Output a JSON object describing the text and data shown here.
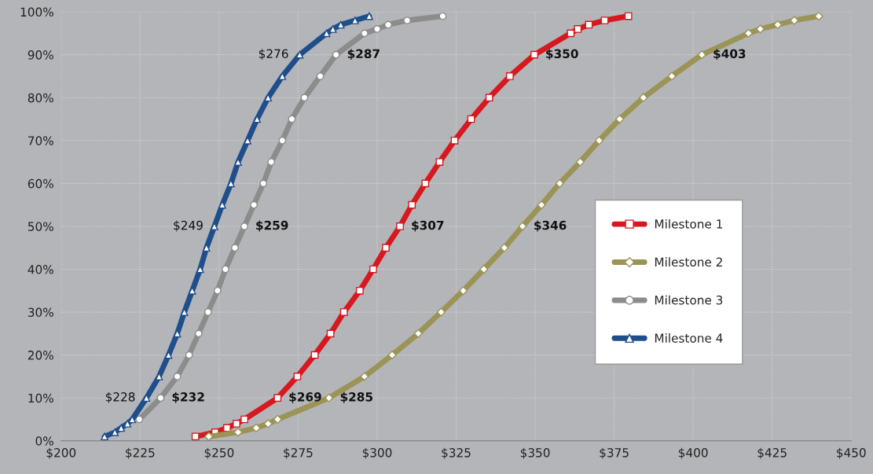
{
  "chart_data": {
    "type": "line",
    "xlim": [
      200,
      450
    ],
    "ylim": [
      0,
      100
    ],
    "xticks": [
      {
        "value": 200,
        "label": "$200"
      },
      {
        "value": 225,
        "label": "$225"
      },
      {
        "value": 250,
        "label": "$250"
      },
      {
        "value": 275,
        "label": "$275"
      },
      {
        "value": 300,
        "label": "$300"
      },
      {
        "value": 325,
        "label": "$325"
      },
      {
        "value": 350,
        "label": "$350"
      },
      {
        "value": 375,
        "label": "$375"
      },
      {
        "value": 400,
        "label": "$400"
      },
      {
        "value": 425,
        "label": "$425"
      },
      {
        "value": 450,
        "label": "$450"
      }
    ],
    "yticks": [
      {
        "value": 0,
        "label": "0%"
      },
      {
        "value": 10,
        "label": "10%"
      },
      {
        "value": 20,
        "label": "20%"
      },
      {
        "value": 30,
        "label": "30%"
      },
      {
        "value": 40,
        "label": "40%"
      },
      {
        "value": 50,
        "label": "50%"
      },
      {
        "value": 60,
        "label": "60%"
      },
      {
        "value": 70,
        "label": "70%"
      },
      {
        "value": 80,
        "label": "80%"
      },
      {
        "value": 90,
        "label": "90%"
      },
      {
        "value": 100,
        "label": "100%"
      }
    ],
    "grid": true,
    "legend": "right",
    "line_style": "solid",
    "series": [
      {
        "name": "Milestone 1",
        "color": "#d7191f",
        "marker": "square",
        "x": [
          242.5,
          248.75,
          252.5,
          255.5,
          258,
          268.5,
          274.75,
          280.25,
          285.25,
          289.5,
          294.5,
          298.75,
          302.75,
          307.25,
          311,
          315.25,
          319.75,
          324.5,
          329.75,
          335.5,
          342,
          349.75,
          361.25,
          363.5,
          367,
          372,
          379.5
        ],
        "values": [
          1,
          2,
          3,
          4,
          5,
          10,
          15,
          20,
          25,
          30,
          35,
          40,
          45,
          50,
          55,
          60,
          65,
          70,
          75,
          80,
          85,
          90,
          95,
          96,
          97,
          98,
          99
        ]
      },
      {
        "name": "Milestone 2",
        "color": "#9b9456",
        "marker": "diamond",
        "x": [
          246.75,
          256,
          261.75,
          265.5,
          268.5,
          284.75,
          296,
          304.75,
          313,
          320.25,
          327.25,
          333.75,
          340.25,
          346,
          352,
          357.75,
          364.25,
          370.25,
          376.75,
          384.25,
          393.25,
          402.75,
          417.5,
          421.25,
          426.75,
          432,
          439.75
        ],
        "values": [
          1,
          2,
          3,
          4,
          5,
          10,
          15,
          20,
          25,
          30,
          35,
          40,
          45,
          50,
          55,
          60,
          65,
          70,
          75,
          80,
          85,
          90,
          95,
          96,
          97,
          98,
          99
        ]
      },
      {
        "name": "Milestone 3",
        "color": "#8c8c8c",
        "marker": "circle",
        "x": [
          224.75,
          231.5,
          236.75,
          240.5,
          243.5,
          246.5,
          249.5,
          252,
          255,
          258,
          261,
          264,
          266.5,
          270,
          273,
          277,
          282,
          287,
          296,
          300,
          303.5,
          309.5,
          320.75
        ],
        "values": [
          5,
          10,
          15,
          20,
          25,
          30,
          35,
          40,
          45,
          50,
          55,
          60,
          65,
          70,
          75,
          80,
          85,
          90,
          95,
          96,
          97,
          98,
          99
        ]
      },
      {
        "name": "Milestone 4",
        "color": "#1f4e8c",
        "marker": "triangle",
        "x": [
          213.75,
          217,
          219,
          221,
          222.5,
          227,
          231,
          234,
          236.75,
          239,
          241.5,
          244,
          246,
          248.5,
          251,
          253.75,
          256,
          259,
          262,
          265.5,
          270,
          275.5,
          284,
          286,
          288.5,
          293,
          297.5
        ],
        "values": [
          1,
          2,
          3,
          4,
          5,
          10,
          15,
          20,
          25,
          30,
          35,
          40,
          45,
          50,
          55,
          60,
          65,
          70,
          75,
          80,
          85,
          90,
          95,
          96,
          97,
          98,
          99
        ]
      }
    ],
    "annotations": [
      {
        "text": "$228",
        "x": 227,
        "y": 10
      },
      {
        "text": "$249",
        "x": 248.5,
        "y": 50
      },
      {
        "text": "$276",
        "x": 275.5,
        "y": 90
      },
      {
        "text": "$232",
        "x": 231.5,
        "y": 10
      },
      {
        "text": "$259",
        "x": 258,
        "y": 50
      },
      {
        "text": "$287",
        "x": 287,
        "y": 90
      },
      {
        "text": "$269",
        "x": 268.5,
        "y": 10
      },
      {
        "text": "$307",
        "x": 307.25,
        "y": 50
      },
      {
        "text": "$350",
        "x": 349.75,
        "y": 90
      },
      {
        "text": "$285",
        "x": 284.75,
        "y": 10
      },
      {
        "text": "$346",
        "x": 346,
        "y": 50
      },
      {
        "text": "$403",
        "x": 402.75,
        "y": 90
      }
    ]
  }
}
